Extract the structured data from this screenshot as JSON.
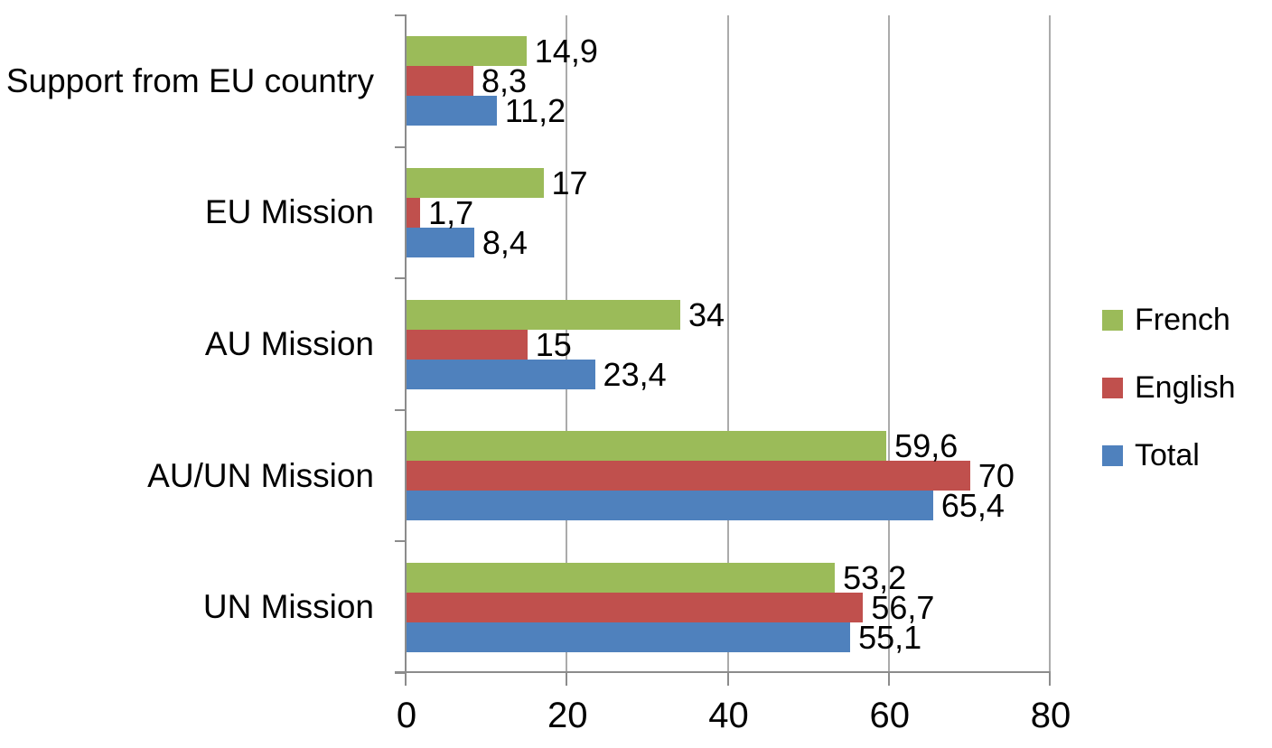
{
  "chart_data": {
    "type": "bar",
    "orientation": "horizontal",
    "title": "",
    "xlabel": "",
    "ylabel": "",
    "categories": [
      "Support from EU country",
      "EU Mission",
      "AU Mission",
      "AU/UN Mission",
      "UN Mission"
    ],
    "series": [
      {
        "name": "French",
        "color": "#9BBB59",
        "values": [
          14.9,
          17,
          34,
          59.6,
          53.2
        ],
        "labels": [
          "14,9",
          "17",
          "34",
          "59,6",
          "53,2"
        ]
      },
      {
        "name": "English",
        "color": "#C0504D",
        "values": [
          8.3,
          1.7,
          15,
          70,
          56.7
        ],
        "labels": [
          "8,3",
          "1,7",
          "15",
          "70",
          "56,7"
        ]
      },
      {
        "name": "Total",
        "color": "#4F81BD",
        "values": [
          11.2,
          8.4,
          23.4,
          65.4,
          55.1
        ],
        "labels": [
          "11,2",
          "8,4",
          "23,4",
          "65,4",
          "55,1"
        ]
      }
    ],
    "xlim": [
      0,
      80
    ],
    "x_ticks": [
      0,
      20,
      40,
      60,
      80
    ],
    "x_tick_labels": [
      "0",
      "20",
      "40",
      "60",
      "80"
    ],
    "grid": true,
    "legend_position": "right",
    "colors": {
      "gridline": "#ABABAB",
      "axis": "#8C8C8C",
      "text": "#000000",
      "background": "#FFFFFF"
    }
  }
}
